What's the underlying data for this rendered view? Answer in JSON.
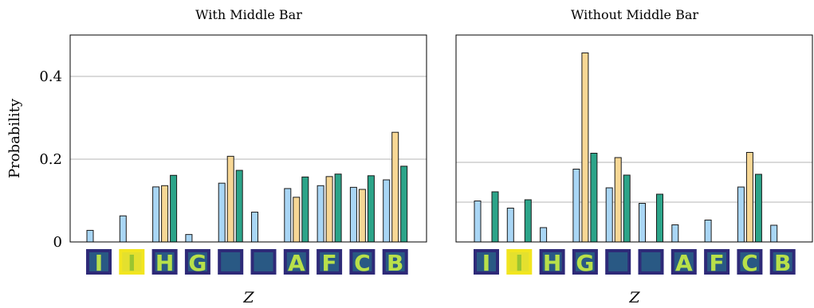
{
  "colors": {
    "series": [
      "#a9d6f5",
      "#f7d795",
      "#2ca489"
    ],
    "bar_stroke": "#1a1a1a",
    "image_dark": "#2e2a78",
    "image_mid": "#27808e",
    "image_bright": "#f2e51f"
  },
  "chart_data": [
    {
      "type": "bar",
      "title": "With Middle Bar",
      "xlabel": "Z",
      "ylabel": "Probability",
      "ylim": [
        0,
        0.5
      ],
      "yticks": [
        0,
        0.2,
        0.4
      ],
      "ytick_labels": [
        "0",
        "0.2",
        "0.4"
      ],
      "grid": "horizontal",
      "categories": [
        "I",
        "I",
        "H",
        "G",
        "—",
        "—",
        "A",
        "F",
        "C",
        "B"
      ],
      "series": [
        {
          "values": [
            0.028,
            0.063,
            0.133,
            0.018,
            0.142,
            0.072,
            0.129,
            0.136,
            0.132,
            0.15
          ]
        },
        {
          "values": [
            null,
            null,
            0.136,
            null,
            0.207,
            null,
            0.108,
            0.158,
            0.127,
            0.265
          ]
        },
        {
          "values": [
            null,
            null,
            0.161,
            null,
            0.173,
            null,
            0.157,
            0.164,
            0.16,
            0.183
          ]
        }
      ]
    },
    {
      "type": "bar",
      "title": "Without Middle Bar",
      "xlabel": "Z",
      "ylabel": "",
      "ylim": [
        0,
        0.52
      ],
      "yticks": [
        0.1,
        0.2
      ],
      "ytick_labels": [
        "",
        ""
      ],
      "grid": "horizontal",
      "categories": [
        "I",
        "I",
        "H",
        "G",
        "—",
        "—",
        "A",
        "F",
        "C",
        "B"
      ],
      "series": [
        {
          "values": [
            0.103,
            0.085,
            0.036,
            0.183,
            0.136,
            0.097,
            0.043,
            0.055,
            0.138,
            0.042
          ]
        },
        {
          "values": [
            null,
            null,
            null,
            0.475,
            0.212,
            null,
            null,
            null,
            0.225,
            null
          ]
        },
        {
          "values": [
            0.126,
            0.106,
            null,
            0.223,
            0.168,
            0.12,
            null,
            null,
            0.17,
            null
          ]
        }
      ]
    }
  ]
}
